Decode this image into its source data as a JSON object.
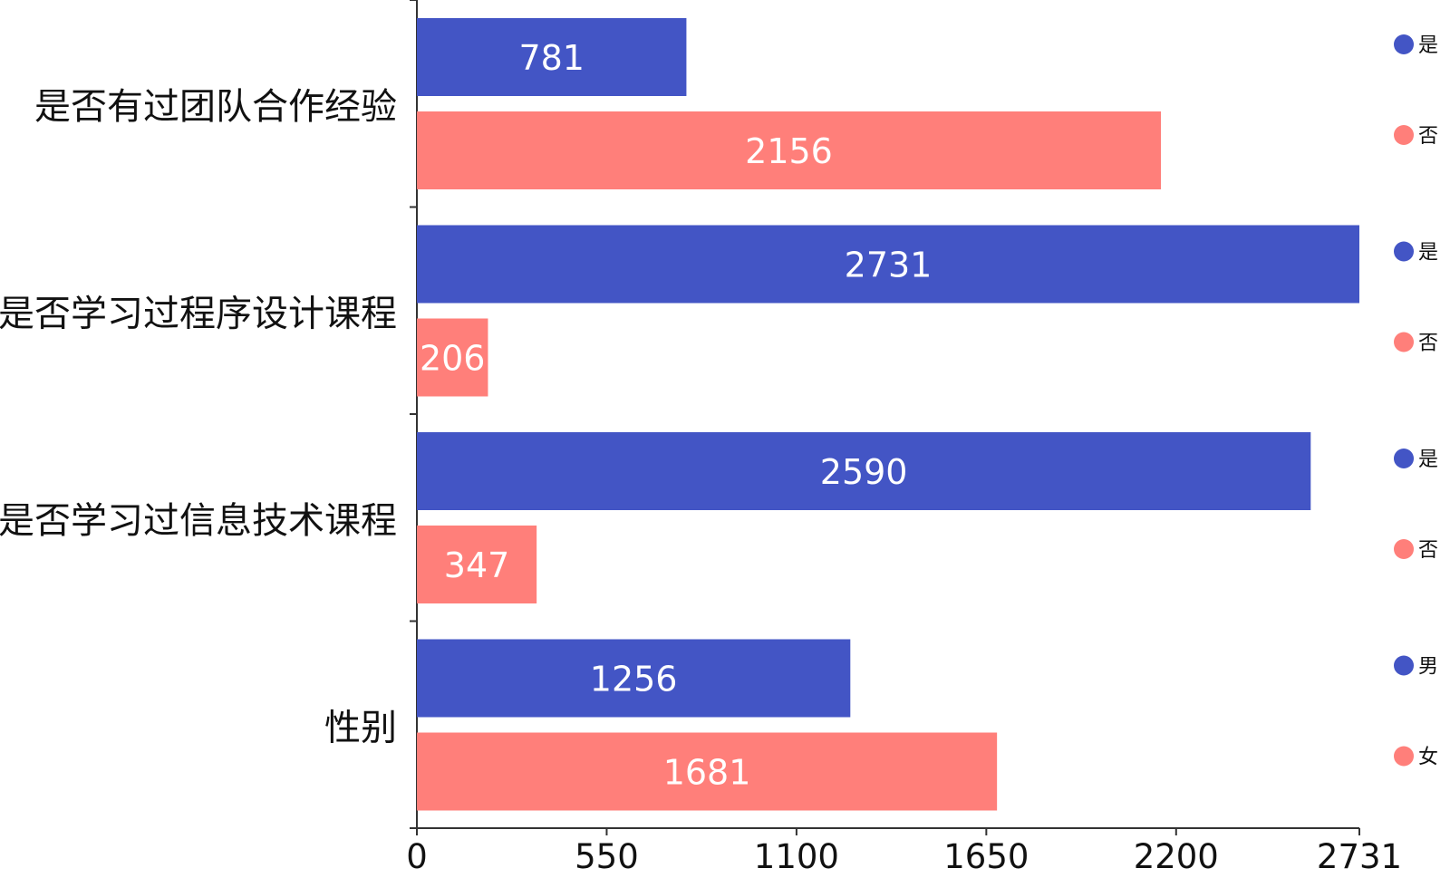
{
  "chart_data": {
    "type": "bar",
    "orientation": "horizontal",
    "categories": [
      "是否有过团队合作经验",
      "是否学习过程序设计课程",
      "是否学习过信息技术课程",
      "性别"
    ],
    "groups": [
      {
        "category": "是否有过团队合作经验",
        "bars": [
          {
            "name": "是",
            "value": 781
          },
          {
            "name": "否",
            "value": 2156
          }
        ]
      },
      {
        "category": "是否学习过程序设计课程",
        "bars": [
          {
            "name": "是",
            "value": 2731
          },
          {
            "name": "否",
            "value": 206
          }
        ]
      },
      {
        "category": "是否学习过信息技术课程",
        "bars": [
          {
            "name": "是",
            "value": 2590
          },
          {
            "name": "否",
            "value": 347
          }
        ]
      },
      {
        "category": "性别",
        "bars": [
          {
            "name": "男",
            "value": 1256
          },
          {
            "name": "女",
            "value": 1681
          }
        ]
      }
    ],
    "xlim": [
      0,
      2731
    ],
    "xticks": [
      "0",
      "550",
      "1100",
      "1650",
      "2200",
      "2731"
    ],
    "xtick_values": [
      0,
      550,
      1100,
      1650,
      2200,
      2731
    ],
    "colors": {
      "first": "#4355C5",
      "second": "#FF7F7A",
      "axis": "#333333"
    },
    "grid": false,
    "legend_position": "right"
  }
}
